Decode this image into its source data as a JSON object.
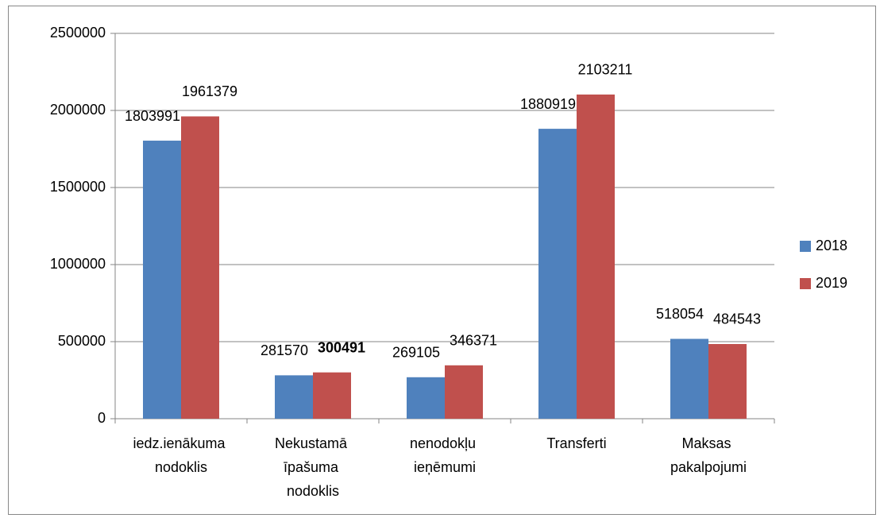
{
  "chart_data": {
    "type": "bar",
    "categories": [
      "iedz.ienākuma nodoklis",
      "Nekustamā īpašuma nodoklis",
      "nenodokļu ieņēmumi",
      "Transferti",
      "Maksas pakalpojumi"
    ],
    "series": [
      {
        "name": "2018",
        "color": "#4f81bd",
        "values": [
          1803991,
          281570,
          269105,
          1880919,
          518054
        ]
      },
      {
        "name": "2019",
        "color": "#c0504d",
        "values": [
          1961379,
          300491,
          346371,
          2103211,
          484543
        ],
        "bold_value_indices": [
          1
        ]
      }
    ],
    "ylim": [
      0,
      2500000
    ],
    "yticks": [
      0,
      500000,
      1000000,
      1500000,
      2000000,
      2500000
    ],
    "grid": true,
    "legend": "right"
  }
}
